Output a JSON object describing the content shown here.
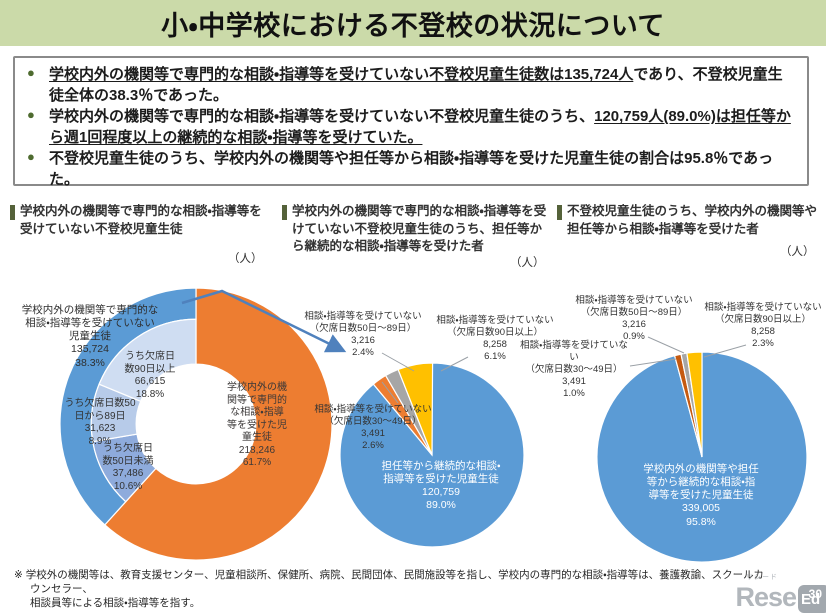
{
  "title": "小・中学校における不登校の状況について",
  "info_box": {
    "bullets": [
      {
        "segments": [
          {
            "text": "学校内外の機関等で専門的な相談・指導等を受けていない不登校児童生徒数は135,724人",
            "underline": true
          },
          {
            "text": "であり、不登校児童生徒全体の38.3％であった。",
            "underline": false
          }
        ]
      },
      {
        "segments": [
          {
            "text": "学校内外の機関等で専門的な相談・指導等を受けていない不登校児童生徒のうち、",
            "underline": false
          },
          {
            "text": "120,759人(89.0%)は担任等から週1回程度以上の継続的な相談・指導等を受けていた。",
            "underline": true
          }
        ]
      },
      {
        "segments": [
          {
            "text": "不登校児童生徒のうち、学校内外の機関等や担任等から相談・指導等を受けた児童生徒の割合は95.8％であった。",
            "underline": false
          }
        ]
      }
    ]
  },
  "sections": [
    {
      "header": "学校内外の機関等で専門的な相談・指導等を受けていない不登校児童生徒",
      "unit": "（人）"
    },
    {
      "header": "学校内外の機関等で専門的な相談・指導等を受けていない不登校児童生徒のうち、担任等から継続的な相談・指導等を受けた者",
      "unit": "（人）"
    },
    {
      "header": "不登校児童生徒のうち、学校内外の機関等や担任等から相談・指導等を受けた者",
      "unit": "（人）"
    }
  ],
  "chart_data": [
    {
      "type": "pie",
      "style": "donut-two-level",
      "title": "学校内外の機関等で専門的な相談・指導等を受けていない不登校児童生徒",
      "unit": "人",
      "hole": 0.44,
      "split_radius": 0.77,
      "slices": [
        {
          "label": "学校内外の機関等で専門的な相談・指導等を受けた児童生徒",
          "value": 218246,
          "pct": 61.7,
          "color": "#ed7d31"
        },
        {
          "label": "学校内外の機関等で専門的な相談・指導等を受けていない児童生徒",
          "value": 135724,
          "pct": 38.3,
          "color": "#5b9bd5",
          "breakdown": [
            {
              "label": "うち欠席日数50日未満",
              "value": 37486,
              "pct": 10.6,
              "color": "#8eabdc"
            },
            {
              "label": "うち欠席日数50日から89日",
              "value": 31623,
              "pct": 8.9,
              "color": "#b7cbe9"
            },
            {
              "label": "うち欠席日数90日以上",
              "value": 66615,
              "pct": 18.8,
              "color": "#cfddf2"
            }
          ]
        }
      ]
    },
    {
      "type": "pie",
      "title": "学校内外の機関等で専門的な相談・指導等を受けていない不登校児童生徒のうち、担任等から継続的な相談・指導等を受けた者",
      "unit": "人",
      "hole": 0,
      "slices": [
        {
          "label": "担任等から継続的な相談・指導等を受けた児童生徒",
          "value": 120759,
          "pct": 89.0,
          "color": "#5b9bd5"
        },
        {
          "label": "相談・指導等を受けていない（欠席日数30～49日）",
          "value": 3491,
          "pct": 2.6,
          "color": "#ed7d31"
        },
        {
          "label": "相談・指導等を受けていない（欠席日数50日～89日）",
          "value": 3216,
          "pct": 2.4,
          "color": "#a6a6a6"
        },
        {
          "label": "相談・指導等を受けていない（欠席日数90日以上）",
          "value": 8258,
          "pct": 6.1,
          "color": "#ffc000"
        }
      ]
    },
    {
      "type": "pie",
      "title": "不登校児童生徒のうち、学校内外の機関等や担任等から相談・指導等を受けた者",
      "unit": "人",
      "hole": 0,
      "slices": [
        {
          "label": "学校内外の機関等や担任等から継続的な相談・指導等を受けた児童生徒",
          "value": 339005,
          "pct": 95.8,
          "color": "#5b9bd5"
        },
        {
          "label": "相談・指導等を受けていない（欠席日数30～49日）",
          "value": 3491,
          "pct": 1.0,
          "color": "#c55a11"
        },
        {
          "label": "相談・指導等を受けていない（欠席日数50日～89日）",
          "value": 3216,
          "pct": 0.9,
          "color": "#a6a6a6"
        },
        {
          "label": "相談・指導等を受けていない（欠席日数90日以上）",
          "value": 8258,
          "pct": 2.3,
          "color": "#ffc000"
        }
      ]
    }
  ],
  "labels": {
    "c1_not": "学校内外の機関等で専門的な\n相談・指導等を受けていない\n児童生徒\n135,724\n38.3%",
    "c1_d90": "うち欠席日\n数90日以上\n66,615\n18.8%",
    "c1_d5089": "うち欠席日数50\n日から89日\n31,623\n8.9%",
    "c1_d50": "うち欠席日\n数50日未満\n37,486\n10.6%",
    "c1_rec": "学校内外の機\n関等で専門的\nな相談・指導\n等を受けた児\n童生徒\n218,246\n61.7%",
    "c2_5089": "相談・指導等を受けていない\n（欠席日数50日～89日）\n3,216\n2.4%",
    "c2_90": "相談・指導等を受けていない\n（欠席日数90日以上）\n8,258\n6.1%",
    "c2_3049": "相談・指導等を受けていない\n（欠席日数30～49日）\n3,491\n2.6%",
    "c2_main": "担任等から継続的な相談・\n指導等を受けた児童生徒\n120,759\n89.0%",
    "c3_5089": "相談・指導等を受けていない\n（欠席日数50日～89日）\n3,216\n0.9%",
    "c3_90": "相談・指導等を受けていない\n（欠席日数90日以上）\n8,258\n2.3%",
    "c3_3049": "相談・指導等を受けていない\n（欠席日数30～49日）\n3,491\n1.0%",
    "c3_main": "学校内外の機関等や担任\n等から継続的な相談・指\n導等を受けた児童生徒\n339,005\n95.8%"
  },
  "footnote": "※ 学校外の機関等は、教育支援センター、児童相談所、保健所、病院、民間団体、民間施設等を指し、学校内の専門的な相談・指導等は、養護教諭、スクールカウンセラー、\n相談員等による相談・指導等を指す。",
  "watermark": {
    "ruby": "リシード",
    "text": "Rese",
    "badge": "Ed"
  },
  "page_number": "30",
  "colors": {
    "title_bg": "#cbdaa9",
    "bullet": "#4e6b2f",
    "section_bar": "#55623a",
    "blue": "#5b9bd5",
    "orange": "#ed7d31",
    "gray": "#a6a6a6",
    "yellow": "#ffc000",
    "dark_orange": "#c55a11",
    "arrow": "#4f81bd"
  }
}
